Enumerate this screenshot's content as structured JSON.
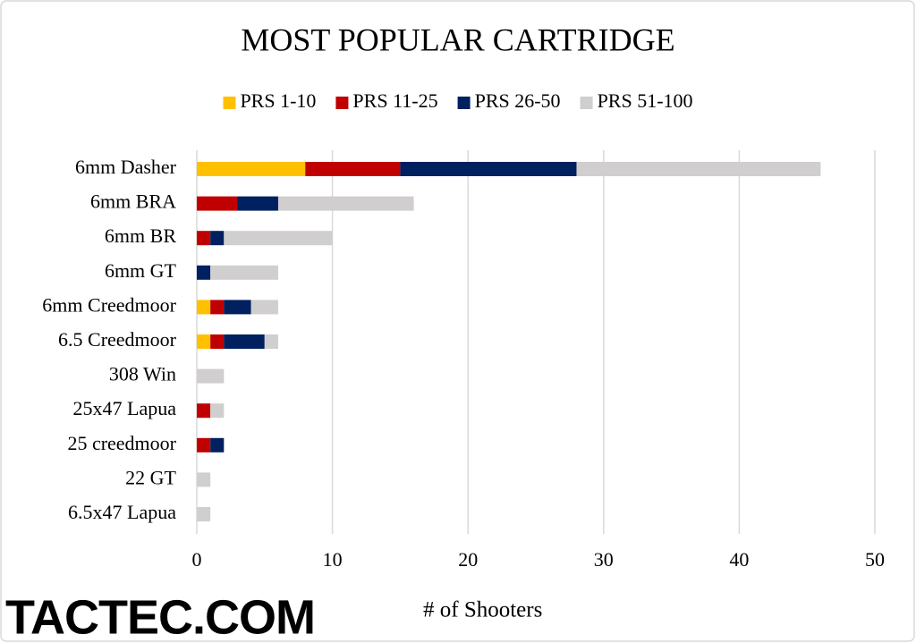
{
  "chart_data": {
    "type": "stacked-bar-horizontal",
    "title": "MOST POPULAR CARTRIDGE",
    "categories": [
      "6mm Dasher",
      "6mm BRA",
      "6mm BR",
      "6mm GT",
      "6mm Creedmoor",
      "6.5 Creedmoor",
      "308 Win",
      "25x47 Lapua",
      "25 creedmoor",
      "22 GT",
      "6.5x47 Lapua"
    ],
    "series": [
      {
        "name": "PRS 1-10",
        "color": "#ffc000",
        "values": [
          8,
          0,
          0,
          0,
          1,
          1,
          0,
          0,
          0,
          0,
          0
        ]
      },
      {
        "name": "PRS 11-25",
        "color": "#c00000",
        "values": [
          7,
          3,
          1,
          0,
          1,
          1,
          0,
          1,
          1,
          0,
          0
        ]
      },
      {
        "name": "PRS 26-50",
        "color": "#002060",
        "values": [
          13,
          3,
          1,
          1,
          2,
          3,
          0,
          0,
          1,
          0,
          0
        ]
      },
      {
        "name": "PRS 51-100",
        "color": "#d0cece",
        "values": [
          18,
          10,
          8,
          5,
          2,
          1,
          2,
          1,
          0,
          1,
          1
        ]
      }
    ],
    "xlabel": "# of Shooters",
    "xlim": [
      0,
      50
    ],
    "xticks": [
      0,
      10,
      20,
      30,
      40,
      50
    ],
    "grid": true,
    "legend": "top",
    "watermark": "TACTEC.COM"
  }
}
